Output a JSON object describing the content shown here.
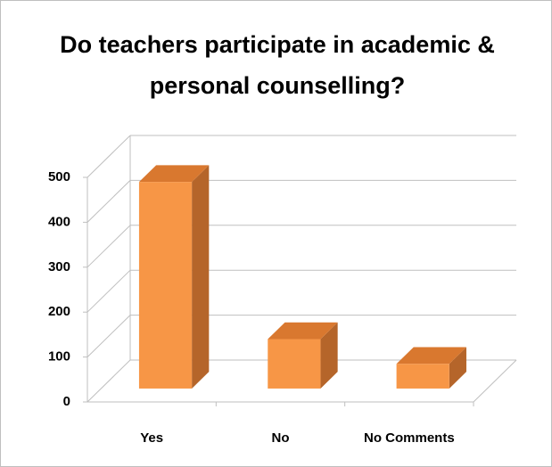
{
  "chart_data": {
    "type": "bar3d",
    "title": "Do teachers participate in academic & personal counselling?",
    "categories": [
      "Yes",
      "No",
      "No Comments"
    ],
    "values": [
      460,
      110,
      55
    ],
    "color": "#f79646",
    "ylim": [
      0,
      500
    ],
    "yticks": [
      0,
      100,
      200,
      300,
      400,
      500
    ],
    "grid": true
  }
}
